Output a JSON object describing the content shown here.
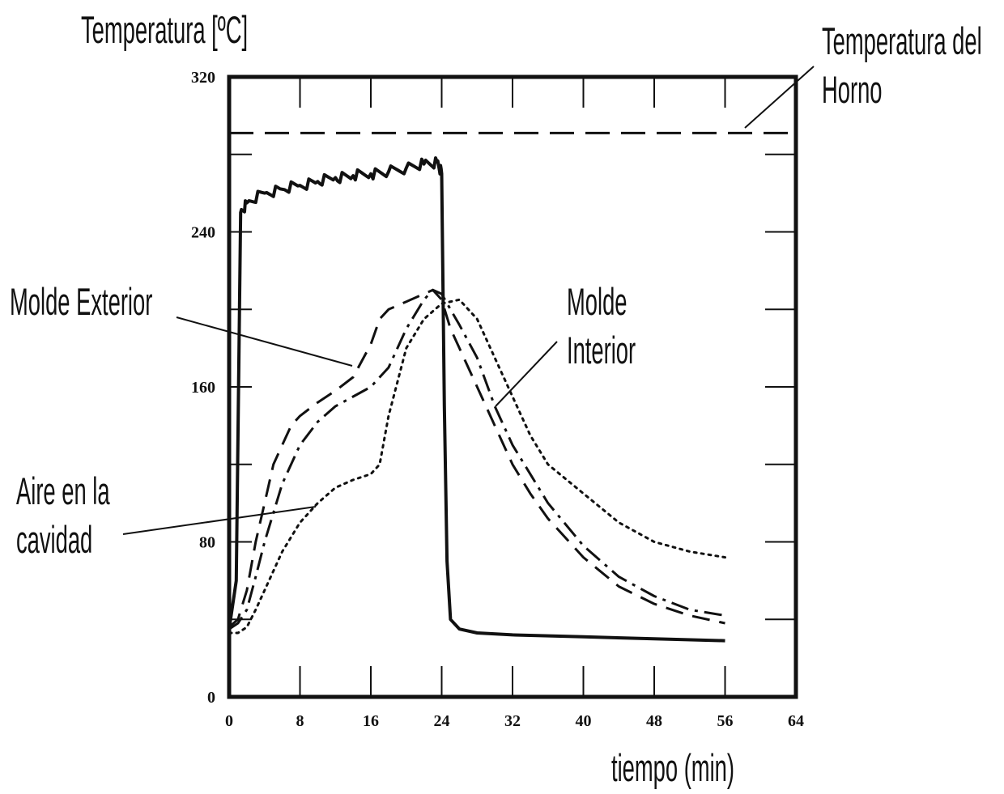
{
  "chart_data": {
    "type": "line",
    "title": "",
    "ylabel": "Temperatura [ºC]",
    "xlabel": "tiempo (min)",
    "xlim": [
      0,
      64
    ],
    "ylim": [
      0,
      320
    ],
    "x_ticks": [
      0,
      8,
      16,
      24,
      32,
      40,
      48,
      56,
      64
    ],
    "x_tick_labels": [
      "0",
      "8",
      "16",
      "24",
      "32",
      "40",
      "48",
      "56",
      "64"
    ],
    "y_ticks": [
      0,
      80,
      160,
      240,
      320
    ],
    "y_tick_labels": [
      "0",
      "80",
      "160",
      "240",
      "320"
    ],
    "grid": false,
    "series": [
      {
        "name": "Temperatura del Horno",
        "style": "long-dash",
        "x": [
          0,
          64
        ],
        "y": [
          291,
          291
        ]
      },
      {
        "name": "",
        "style": "solid-noisy",
        "x": [
          0,
          0.8,
          1.3,
          2,
          4,
          6,
          8,
          10,
          12,
          14,
          16,
          18,
          20,
          22,
          23.5,
          24,
          24.3,
          24.6,
          25,
          26,
          28,
          32,
          40,
          48,
          56
        ],
        "y": [
          35,
          60,
          250,
          255,
          260,
          262,
          264,
          266,
          268,
          269,
          270,
          271,
          273,
          275,
          276,
          270,
          150,
          70,
          40,
          35,
          33,
          32,
          31,
          30,
          29
        ]
      },
      {
        "name": "Molde Exterior",
        "style": "dashed",
        "x": [
          0,
          1,
          2,
          3,
          4,
          5,
          6,
          7,
          8,
          10,
          12,
          14,
          16,
          17,
          18,
          20,
          22,
          23,
          24,
          25,
          26,
          28,
          30,
          32,
          34,
          36,
          40,
          44,
          48,
          52,
          56
        ],
        "y": [
          36,
          40,
          55,
          80,
          100,
          120,
          130,
          140,
          145,
          152,
          158,
          165,
          182,
          195,
          200,
          204,
          208,
          210,
          205,
          190,
          180,
          160,
          140,
          120,
          105,
          92,
          72,
          57,
          48,
          42,
          38
        ]
      },
      {
        "name": "",
        "style": "dash-dot",
        "x": [
          0,
          1,
          2,
          3,
          4,
          6,
          8,
          10,
          12,
          14,
          16,
          18,
          20,
          22,
          23,
          24,
          25,
          26,
          28,
          30,
          32,
          34,
          36,
          40,
          44,
          48,
          52,
          56
        ],
        "y": [
          35,
          38,
          45,
          62,
          80,
          110,
          130,
          142,
          150,
          155,
          160,
          170,
          190,
          205,
          210,
          208,
          200,
          192,
          175,
          150,
          130,
          115,
          100,
          78,
          62,
          52,
          45,
          42
        ]
      },
      {
        "name": "Aire en la cavidad",
        "style": "dotted",
        "x": [
          0,
          1,
          2,
          3,
          4,
          6,
          8,
          10,
          12,
          14,
          16,
          17,
          18,
          20,
          22,
          24,
          26,
          28,
          30,
          32,
          34,
          36,
          40,
          44,
          48,
          52,
          56
        ],
        "y": [
          33,
          33,
          36,
          45,
          55,
          75,
          90,
          100,
          108,
          112,
          115,
          120,
          145,
          180,
          195,
          203,
          205,
          195,
          175,
          155,
          135,
          120,
          105,
          90,
          80,
          75,
          72
        ]
      }
    ],
    "annotations": {
      "horno": [
        "Temperatura del",
        "Horno"
      ],
      "molde_exterior": "Molde Exterior",
      "molde_interior": [
        "Molde",
        "Interior"
      ],
      "aire": [
        "Aire en la",
        "cavidad"
      ]
    }
  }
}
